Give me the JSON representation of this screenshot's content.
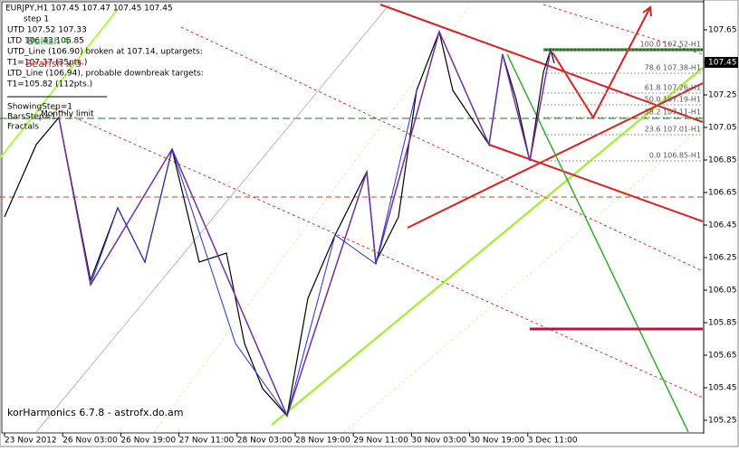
{
  "header": {
    "symbol": "EURJPY,H1  107.45 107.47 107.45 107.45"
  },
  "info": [
    "step 1",
    "UTD 107.52  107.33",
    "LTD 106.43  106.85",
    "UTD_Line (106.90) broken at 107.14, uptargets:",
    "T1=107.37 (35pts.)",
    "LTD_Line (106.94), probable downbreak targets:",
    "T1=105.82 (112pts.)",
    "ShowingStep=1",
    "BarsStep=1",
    "Fractals"
  ],
  "overlay": {
    "bullish": "Bullish 4",
    "bearish": "Bearish x 3",
    "monthly": "Monthly limit"
  },
  "price_axis": [
    "107.65",
    "107.45",
    "107.25",
    "107.05",
    "106.85",
    "106.65",
    "106.45",
    "106.25",
    "106.05",
    "105.85",
    "105.65",
    "105.45",
    "105.25"
  ],
  "current_price_index": 1,
  "time_axis": [
    "23 Nov 2012",
    "26 Nov 03:00",
    "26 Nov 19:00",
    "27 Nov 11:00",
    "28 Nov 03:00",
    "28 Nov 19:00",
    "29 Nov 11:00",
    "30 Nov 03:00",
    "30 Nov 19:00",
    "3 Dec 11:00"
  ],
  "fib_levels": [
    "100.0 107.52-H1",
    "78.6 107.38-H1",
    "61.8 107.26-H1",
    "50.0 107.19-H1",
    "38.2 107.11-H1",
    "23.6 107.01-H1",
    "0.0 106.85-H1"
  ],
  "watermark": "korHarmonics 6.7.8 - astrofx.do.am"
}
